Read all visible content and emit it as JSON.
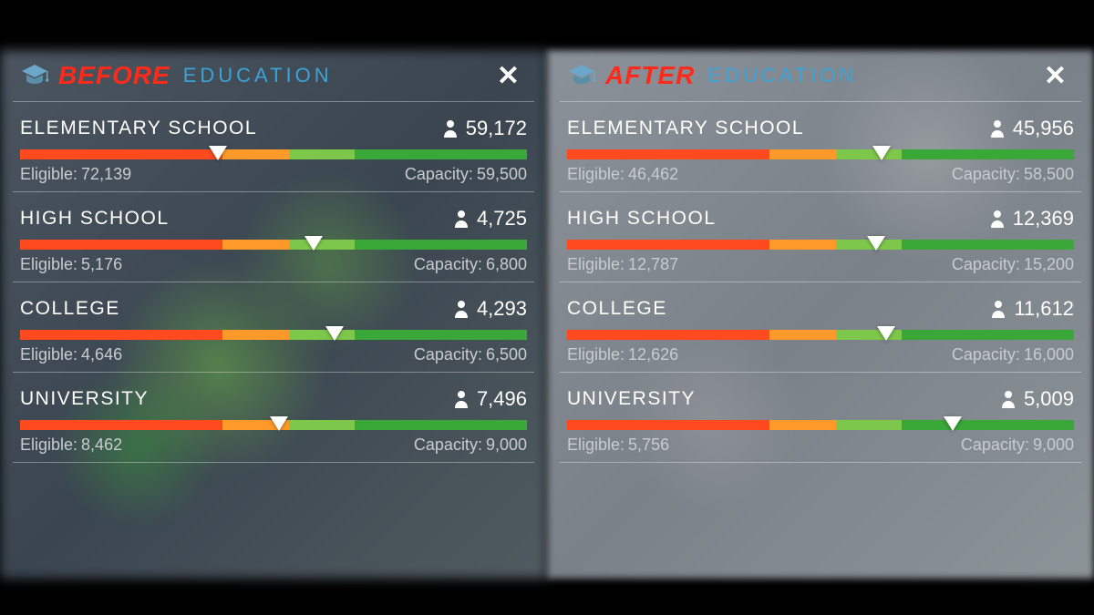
{
  "colors": {
    "comparison_label": "#ff2a1a",
    "title": "#3aa3d8",
    "close": "#ffffff",
    "row_text": "#ffffff",
    "sub_text": "#c8ccd0",
    "bar_red": "#ff4a1f",
    "bar_orange": "#ff9a2a",
    "bar_light_green": "#7dc84a",
    "bar_green": "#3aa838",
    "divider": "rgba(255,255,255,0.35)"
  },
  "labels": {
    "eligible_prefix": "Eligible:",
    "capacity_prefix": "Capacity:",
    "panel_title": "EDUCATION"
  },
  "bar_segments": [
    {
      "color_key": "bar_red",
      "width_pct": 40
    },
    {
      "color_key": "bar_orange",
      "width_pct": 13
    },
    {
      "color_key": "bar_light_green",
      "width_pct": 13
    },
    {
      "color_key": "bar_green",
      "width_pct": 34
    }
  ],
  "panels": [
    {
      "key": "before",
      "comparison_label": "BEFORE",
      "bg_class": "panel-bg-before",
      "rows": [
        {
          "name": "ELEMENTARY SCHOOL",
          "count": "59,172",
          "eligible": "72,139",
          "capacity": "59,500",
          "marker_pct": 39
        },
        {
          "name": "HIGH SCHOOL",
          "count": "4,725",
          "eligible": "5,176",
          "capacity": "6,800",
          "marker_pct": 58
        },
        {
          "name": "COLLEGE",
          "count": "4,293",
          "eligible": "4,646",
          "capacity": "6,500",
          "marker_pct": 62
        },
        {
          "name": "UNIVERSITY",
          "count": "7,496",
          "eligible": "8,462",
          "capacity": "9,000",
          "marker_pct": 51
        }
      ]
    },
    {
      "key": "after",
      "comparison_label": "AFTER",
      "bg_class": "panel-bg-after",
      "rows": [
        {
          "name": "ELEMENTARY SCHOOL",
          "count": "45,956",
          "eligible": "46,462",
          "capacity": "58,500",
          "marker_pct": 62
        },
        {
          "name": "HIGH SCHOOL",
          "count": "12,369",
          "eligible": "12,787",
          "capacity": "15,200",
          "marker_pct": 61
        },
        {
          "name": "COLLEGE",
          "count": "11,612",
          "eligible": "12,626",
          "capacity": "16,000",
          "marker_pct": 63
        },
        {
          "name": "UNIVERSITY",
          "count": "5,009",
          "eligible": "5,756",
          "capacity": "9,000",
          "marker_pct": 76
        }
      ]
    }
  ]
}
